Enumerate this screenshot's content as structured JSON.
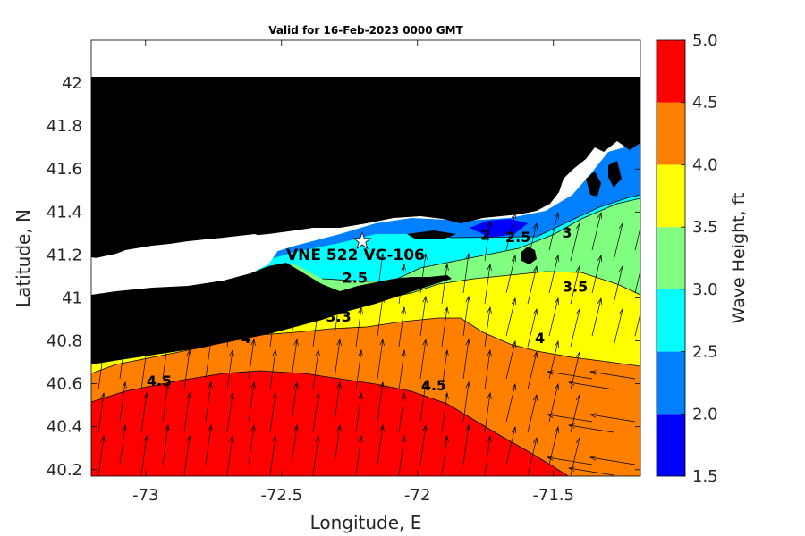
{
  "title": "Valid for 16-Feb-2023 0000 GMT",
  "xlabel": "Longitude, E",
  "ylabel": "Latitude, N",
  "colorbar_label": "Wave Height, ft",
  "station_label": "VNE 522 VC-106",
  "station_marker": "white star",
  "x_ticks": [
    "-73",
    "-72.5",
    "-72",
    "-71.5"
  ],
  "y_ticks": [
    "42",
    "41.8",
    "41.6",
    "41.4",
    "41.2",
    "41",
    "40.8",
    "40.6",
    "40.4",
    "40.2"
  ],
  "colorbar_ticks": [
    "5.0",
    "4.5",
    "4.0",
    "3.5",
    "3.0",
    "2.5",
    "2.0",
    "1.5"
  ],
  "contour_labels": [
    {
      "text": "2",
      "lon": -71.75,
      "lat": 41.27
    },
    {
      "text": "2.5",
      "lon": -71.63,
      "lat": 41.26
    },
    {
      "text": "3",
      "lon": -71.45,
      "lat": 41.28
    },
    {
      "text": "2.5",
      "lon": -72.23,
      "lat": 41.07
    },
    {
      "text": "3.5",
      "lon": -71.42,
      "lat": 41.03
    },
    {
      "text": "3.3",
      "lon": -72.29,
      "lat": 40.89
    },
    {
      "text": "4",
      "lon": -72.63,
      "lat": 40.79
    },
    {
      "text": "4",
      "lon": -71.55,
      "lat": 40.79
    },
    {
      "text": "4.5",
      "lon": -72.95,
      "lat": 40.59
    },
    {
      "text": "4.5",
      "lon": -71.94,
      "lat": 40.57
    }
  ],
  "colors": {
    "land": "#000000",
    "no_data": "#ffffff",
    "bands": [
      {
        "range": "1.5-2.0",
        "color": "#0000ff"
      },
      {
        "range": "2.0-2.5",
        "color": "#0080ff"
      },
      {
        "range": "2.5-3.0",
        "color": "#00ffff"
      },
      {
        "range": "3.0-3.5",
        "color": "#80ff80"
      },
      {
        "range": "3.5-4.0",
        "color": "#ffff00"
      },
      {
        "range": "4.0-4.5",
        "color": "#ff8000"
      },
      {
        "range": "4.5-5.0",
        "color": "#ff0000"
      }
    ]
  },
  "chart_data": {
    "type": "heatmap",
    "title": "Valid for 16-Feb-2023 0000 GMT",
    "xlabel": "Longitude, E",
    "ylabel": "Latitude, N",
    "xlim": [
      -73.2,
      -71.18
    ],
    "ylim": [
      40.17,
      42.2
    ],
    "colorbar": {
      "label": "Wave Height, ft",
      "range": [
        1.5,
        5.0
      ],
      "step": 0.5
    },
    "station": {
      "name": "VNE 522 VC-106",
      "lon": -72.2,
      "lat": 41.25
    },
    "grid": false,
    "legend": "colorbar right"
  }
}
